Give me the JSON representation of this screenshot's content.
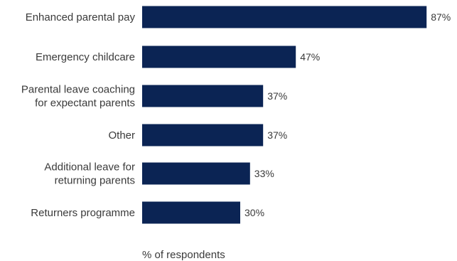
{
  "chart_data": {
    "type": "bar",
    "orientation": "horizontal",
    "categories": [
      "Enhanced parental pay",
      "Emergency childcare",
      "Parental leave coaching for expectant parents",
      "Other",
      "Additional leave for returning parents",
      "Returners programme"
    ],
    "category_lines": [
      [
        "Enhanced parental pay"
      ],
      [
        "Emergency childcare"
      ],
      [
        "Parental leave coaching",
        "for expectant parents"
      ],
      [
        "Other"
      ],
      [
        "Additional leave for",
        "returning parents"
      ],
      [
        "Returners programme"
      ]
    ],
    "values": [
      87,
      47,
      37,
      37,
      33,
      30
    ],
    "value_labels": [
      "87%",
      "47%",
      "37%",
      "37%",
      "33%",
      "30%"
    ],
    "xlabel": "% of respondents",
    "xlim": [
      0,
      100
    ],
    "grid": false,
    "bar_color": "#0b2454",
    "text_color": "#3a3a3a"
  }
}
